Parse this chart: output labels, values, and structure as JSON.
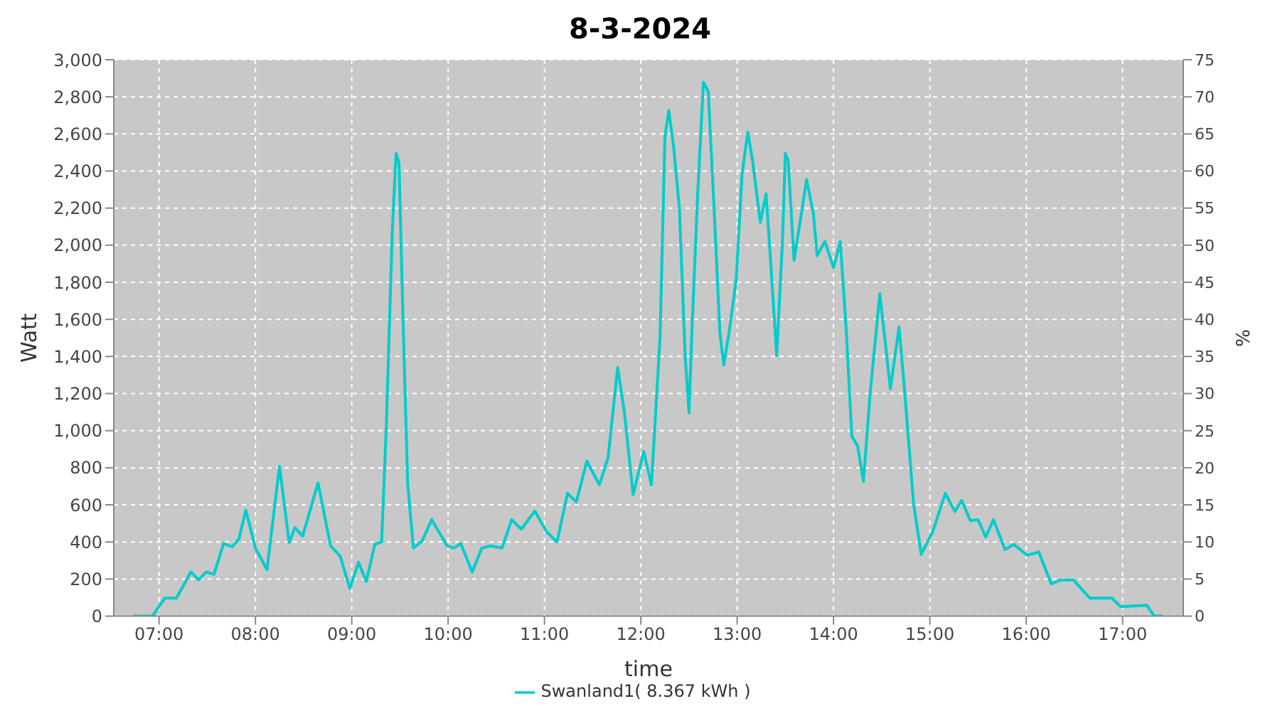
{
  "chart_data": {
    "type": "line",
    "title": "8-3-2024",
    "xlabel": "time",
    "ylabel": "Watt",
    "y2label": "%",
    "x": [
      6.73,
      6.93,
      7.06,
      7.18,
      7.33,
      7.41,
      7.49,
      7.57,
      7.67,
      7.76,
      7.83,
      7.9,
      8.0,
      8.12,
      8.25,
      8.35,
      8.41,
      8.49,
      8.65,
      8.78,
      8.88,
      8.98,
      9.07,
      9.15,
      9.24,
      9.31,
      9.36,
      9.42,
      9.46,
      9.49,
      9.53,
      9.58,
      9.64,
      9.73,
      9.83,
      9.99,
      10.06,
      10.13,
      10.25,
      10.35,
      10.44,
      10.56,
      10.66,
      10.76,
      10.9,
      11.02,
      11.13,
      11.24,
      11.33,
      11.44,
      11.57,
      11.66,
      11.76,
      11.83,
      11.92,
      12.03,
      12.11,
      12.2,
      12.25,
      12.29,
      12.34,
      12.4,
      12.46,
      12.5,
      12.53,
      12.59,
      12.65,
      12.7,
      12.76,
      12.82,
      12.86,
      12.91,
      12.99,
      13.05,
      13.11,
      13.16,
      13.24,
      13.3,
      13.35,
      13.41,
      13.47,
      13.5,
      13.53,
      13.59,
      13.66,
      13.72,
      13.79,
      13.83,
      13.91,
      14.0,
      14.07,
      14.13,
      14.19,
      14.25,
      14.31,
      14.38,
      14.48,
      14.53,
      14.59,
      14.68,
      14.74,
      14.83,
      14.91,
      15.03,
      15.16,
      15.26,
      15.33,
      15.42,
      15.5,
      15.58,
      15.66,
      15.78,
      15.87,
      16.01,
      16.13,
      16.26,
      16.36,
      16.49,
      16.66,
      16.89,
      16.98,
      17.25,
      17.33,
      17.42
    ],
    "series": [
      {
        "name": "Swanland1( 8.367 kWh )",
        "color": "#00cccc",
        "values": [
          0,
          0,
          97,
          97,
          238,
          195,
          238,
          226,
          392,
          374,
          418,
          572,
          367,
          251,
          808,
          397,
          477,
          431,
          718,
          379,
          323,
          149,
          290,
          187,
          387,
          400,
          1046,
          2072,
          2495,
          2444,
          1636,
          713,
          367,
          405,
          520,
          379,
          367,
          392,
          238,
          367,
          379,
          367,
          520,
          469,
          567,
          456,
          400,
          662,
          615,
          836,
          708,
          854,
          1341,
          1097,
          656,
          887,
          708,
          1508,
          2585,
          2726,
          2533,
          2200,
          1405,
          1097,
          1533,
          2277,
          2879,
          2828,
          2200,
          1533,
          1354,
          1508,
          1815,
          2379,
          2610,
          2456,
          2123,
          2277,
          1892,
          1405,
          2020,
          2495,
          2456,
          1918,
          2149,
          2354,
          2174,
          1944,
          2020,
          1879,
          2020,
          1559,
          969,
          918,
          726,
          1200,
          1738,
          1508,
          1226,
          1559,
          1200,
          610,
          333,
          456,
          662,
          564,
          623,
          515,
          520,
          426,
          520,
          359,
          387,
          328,
          346,
          174,
          195,
          195,
          97,
          97,
          51,
          59,
          0,
          0
        ]
      }
    ],
    "xlim": [
      6.53,
      17.63
    ],
    "xticks": [
      {
        "value": 7,
        "label": "07:00"
      },
      {
        "value": 8,
        "label": "08:00"
      },
      {
        "value": 9,
        "label": "09:00"
      },
      {
        "value": 10,
        "label": "10:00"
      },
      {
        "value": 11,
        "label": "11:00"
      },
      {
        "value": 12,
        "label": "12:00"
      },
      {
        "value": 13,
        "label": "13:00"
      },
      {
        "value": 14,
        "label": "14:00"
      },
      {
        "value": 15,
        "label": "15:00"
      },
      {
        "value": 16,
        "label": "16:00"
      },
      {
        "value": 17,
        "label": "17:00"
      }
    ],
    "ylim": [
      0,
      3000
    ],
    "yticks": [
      {
        "value": 0,
        "label": "0"
      },
      {
        "value": 200,
        "label": "200"
      },
      {
        "value": 400,
        "label": "400"
      },
      {
        "value": 600,
        "label": "600"
      },
      {
        "value": 800,
        "label": "800"
      },
      {
        "value": 1000,
        "label": "1,000"
      },
      {
        "value": 1200,
        "label": "1,200"
      },
      {
        "value": 1400,
        "label": "1,400"
      },
      {
        "value": 1600,
        "label": "1,600"
      },
      {
        "value": 1800,
        "label": "1,800"
      },
      {
        "value": 2000,
        "label": "2,000"
      },
      {
        "value": 2200,
        "label": "2,200"
      },
      {
        "value": 2400,
        "label": "2,400"
      },
      {
        "value": 2600,
        "label": "2,600"
      },
      {
        "value": 2800,
        "label": "2,800"
      },
      {
        "value": 3000,
        "label": "3,000"
      }
    ],
    "y2lim": [
      0,
      75
    ],
    "y2ticks": [
      0,
      5,
      10,
      15,
      20,
      25,
      30,
      35,
      40,
      45,
      50,
      55,
      60,
      65,
      70,
      75
    ],
    "grid": true,
    "legend": "bottom"
  }
}
